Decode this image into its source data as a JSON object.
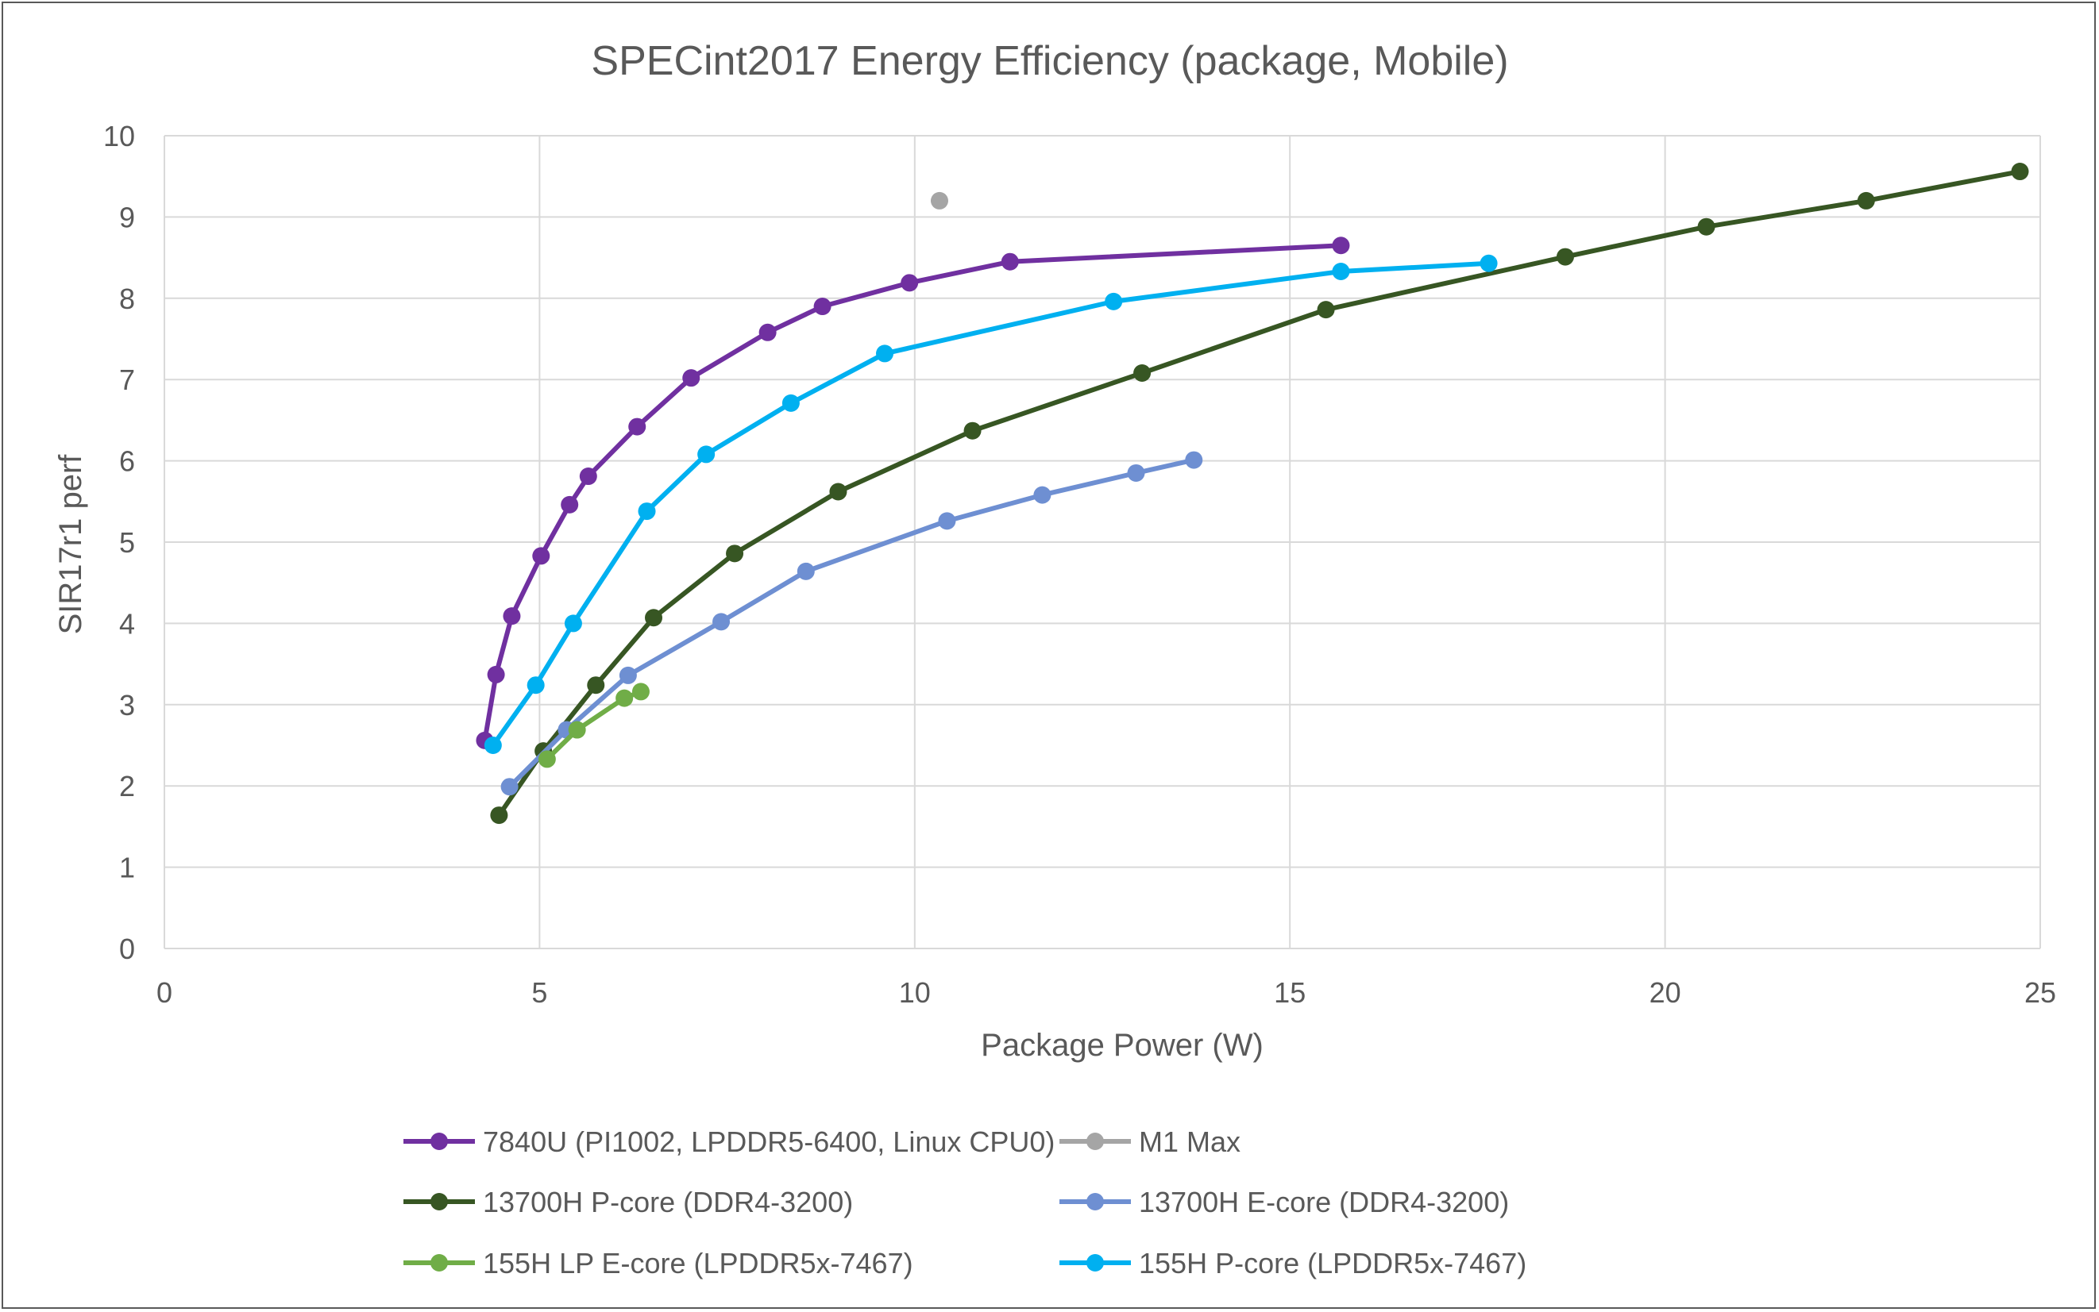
{
  "chart_data": {
    "type": "line",
    "title": "SPECint2017 Energy Efficiency (package, Mobile)",
    "xlabel": "Package Power (W)",
    "ylabel": "SIR17r1 perf",
    "xlim": [
      0,
      25
    ],
    "ylim": [
      0,
      10
    ],
    "xticks": [
      0,
      5,
      10,
      15,
      20,
      25
    ],
    "yticks": [
      0,
      1,
      2,
      3,
      4,
      5,
      6,
      7,
      8,
      9,
      10
    ],
    "grid": true,
    "legend_position": "bottom",
    "series": [
      {
        "name": "7840U (PI1002, LPDDR5-6400, Linux CPU0)",
        "color": "#7030A0",
        "points": [
          [
            4.27,
            2.56
          ],
          [
            4.42,
            3.37
          ],
          [
            4.63,
            4.09
          ],
          [
            5.02,
            4.83
          ],
          [
            5.4,
            5.46
          ],
          [
            5.65,
            5.81
          ],
          [
            6.3,
            6.42
          ],
          [
            7.02,
            7.02
          ],
          [
            8.04,
            7.58
          ],
          [
            8.77,
            7.9
          ],
          [
            9.93,
            8.19
          ],
          [
            11.27,
            8.45
          ],
          [
            15.68,
            8.65
          ]
        ]
      },
      {
        "name": "M1 Max",
        "color": "#A5A5A5",
        "points": [
          [
            10.33,
            9.2
          ]
        ]
      },
      {
        "name": "13700H P-core (DDR4-3200)",
        "color": "#375623",
        "points": [
          [
            4.46,
            1.64
          ],
          [
            5.05,
            2.43
          ],
          [
            5.75,
            3.24
          ],
          [
            6.52,
            4.07
          ],
          [
            7.6,
            4.86
          ],
          [
            8.98,
            5.62
          ],
          [
            10.77,
            6.37
          ],
          [
            13.03,
            7.08
          ],
          [
            15.48,
            7.86
          ],
          [
            18.67,
            8.51
          ],
          [
            20.55,
            8.88
          ],
          [
            22.68,
            9.2
          ],
          [
            24.73,
            9.56
          ]
        ]
      },
      {
        "name": "13700H E-core (DDR4-3200)",
        "color": "#6E8FD2",
        "points": [
          [
            4.6,
            1.99
          ],
          [
            5.36,
            2.69
          ],
          [
            6.18,
            3.36
          ],
          [
            7.42,
            4.02
          ],
          [
            8.55,
            4.64
          ],
          [
            10.43,
            5.26
          ],
          [
            11.7,
            5.58
          ],
          [
            12.95,
            5.85
          ],
          [
            13.72,
            6.01
          ]
        ]
      },
      {
        "name": "155H LP E-core (LPDDR5x-7467)",
        "color": "#70AD47",
        "points": [
          [
            5.1,
            2.33
          ],
          [
            5.5,
            2.69
          ],
          [
            6.13,
            3.08
          ],
          [
            6.35,
            3.16
          ]
        ]
      },
      {
        "name": "155H P-core (LPDDR5x-7467)",
        "color": "#00B0F0",
        "points": [
          [
            4.38,
            2.5
          ],
          [
            4.95,
            3.24
          ],
          [
            5.45,
            4.0
          ],
          [
            6.43,
            5.38
          ],
          [
            7.22,
            6.08
          ],
          [
            8.35,
            6.71
          ],
          [
            9.6,
            7.32
          ],
          [
            12.65,
            7.96
          ],
          [
            15.68,
            8.33
          ],
          [
            17.65,
            8.43
          ]
        ]
      }
    ]
  }
}
